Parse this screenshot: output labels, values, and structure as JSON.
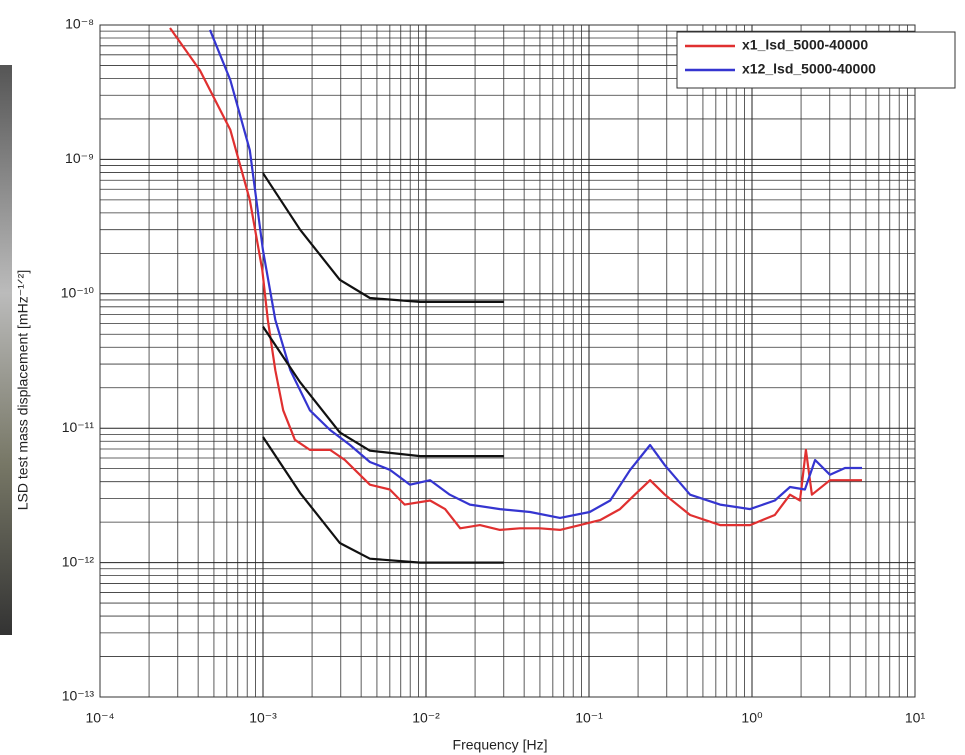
{
  "chart_data": {
    "type": "line",
    "xlabel": "Frequency  [Hz]",
    "ylabel": "LSD test mass displacement  [mHz⁻¹ᐟ²]",
    "xscale": "log",
    "yscale": "log",
    "grid": true,
    "legend": "upper right",
    "xlim": [
      0.0001,
      10
    ],
    "ylim": [
      1e-13,
      1e-08
    ],
    "xticks": [
      {
        "value": 0.0001,
        "label": "10⁻⁴"
      },
      {
        "value": 0.001,
        "label": "10⁻³"
      },
      {
        "value": 0.01,
        "label": "10⁻²"
      },
      {
        "value": 0.1,
        "label": "10⁻¹"
      },
      {
        "value": 1,
        "label": "10⁰"
      },
      {
        "value": 10,
        "label": "10¹"
      }
    ],
    "yticks": [
      {
        "value": 1e-13,
        "label": "10⁻¹³"
      },
      {
        "value": 1e-12,
        "label": "10⁻¹²"
      },
      {
        "value": 1e-11,
        "label": "10⁻¹¹"
      },
      {
        "value": 1e-10,
        "label": "10⁻¹⁰"
      },
      {
        "value": 1e-09,
        "label": "10⁻⁹"
      },
      {
        "value": 1e-08,
        "label": "10⁻⁸"
      }
    ],
    "series": [
      {
        "name": "x1_lsd_5000-40000",
        "color": "#e03030",
        "x": [
          0.000269,
          0.00041,
          0.00063,
          0.00083,
          0.00099,
          0.00107,
          0.00119,
          0.00133,
          0.00157,
          0.00194,
          0.00258,
          0.00318,
          0.00453,
          0.006,
          0.0074,
          0.0106,
          0.0131,
          0.0162,
          0.0214,
          0.0284,
          0.0377,
          0.05,
          0.0664,
          0.088,
          0.117,
          0.155,
          0.191,
          0.237,
          0.292,
          0.417,
          0.637,
          0.973,
          1.38,
          1.71,
          1.97,
          2.14,
          2.33,
          3.01,
          3.72,
          4.73
        ],
        "values": [
          9.5e-09,
          4.6e-09,
          1.66e-09,
          5e-10,
          1.5e-10,
          6.4e-11,
          2.7e-11,
          1.36e-11,
          8.2e-12,
          6.9e-12,
          6.9e-12,
          5.8e-12,
          3.8e-12,
          3.5e-12,
          2.7e-12,
          2.9e-12,
          2.5e-12,
          1.8e-12,
          1.9e-12,
          1.75e-12,
          1.8e-12,
          1.8e-12,
          1.75e-12,
          1.9e-12,
          2.07e-12,
          2.5e-12,
          3.2e-12,
          4.1e-12,
          3.2e-12,
          2.26e-12,
          1.9e-12,
          1.9e-12,
          2.26e-12,
          3.2e-12,
          2.9e-12,
          6.9e-12,
          3.2e-12,
          4.1e-12,
          4.1e-12,
          4.1e-12
        ]
      },
      {
        "name": "x12_lsd_5000-40000",
        "color": "#3535d0",
        "x": [
          0.000473,
          0.00063,
          0.00083,
          0.001,
          0.00119,
          0.00147,
          0.00194,
          0.00258,
          0.00342,
          0.00453,
          0.006,
          0.00798,
          0.0106,
          0.014,
          0.0186,
          0.0284,
          0.0435,
          0.0664,
          0.101,
          0.135,
          0.179,
          0.237,
          0.292,
          0.417,
          0.637,
          0.973,
          1.38,
          1.71,
          2.11,
          2.44,
          3.01,
          3.72,
          4.73
        ],
        "values": [
          9.2e-09,
          3.9e-09,
          1.17e-09,
          2.1e-10,
          6.4e-11,
          2.7e-11,
          1.36e-11,
          9.7e-12,
          7.5e-12,
          5.6e-12,
          4.9e-12,
          3.8e-12,
          4.1e-12,
          3.2e-12,
          2.7e-12,
          2.5e-12,
          2.38e-12,
          2.15e-12,
          2.38e-12,
          2.9e-12,
          4.9e-12,
          7.5e-12,
          5.3e-12,
          3.2e-12,
          2.7e-12,
          2.5e-12,
          2.9e-12,
          3.65e-12,
          3.5e-12,
          5.8e-12,
          4.5e-12,
          5.06e-12,
          5.06e-12
        ]
      },
      {
        "color": "#111111",
        "x": [
          0.001,
          0.00169,
          0.00296,
          0.00453,
          0.0092,
          0.03
        ],
        "values": [
          7.9e-10,
          3e-10,
          1.27e-10,
          9.3e-11,
          8.7e-11,
          8.7e-11
        ]
      },
      {
        "color": "#111111",
        "x": [
          0.001,
          0.00169,
          0.00296,
          0.00453,
          0.0092,
          0.03
        ],
        "values": [
          5.7e-11,
          2.2e-11,
          9.3e-12,
          6.8e-12,
          6.2e-12,
          6.2e-12
        ]
      },
      {
        "color": "#111111",
        "x": [
          0.001,
          0.00169,
          0.00296,
          0.00453,
          0.0092,
          0.03
        ],
        "values": [
          8.6e-12,
          3.3e-12,
          1.4e-12,
          1.07e-12,
          1e-12,
          1e-12
        ]
      }
    ]
  }
}
